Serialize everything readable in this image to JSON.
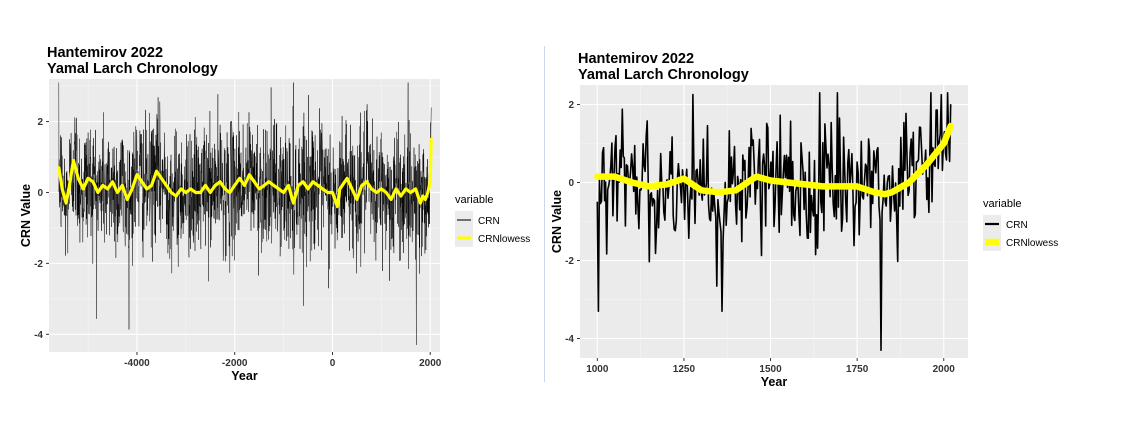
{
  "colors": {
    "panel_bg": "#ebebeb",
    "grid_major": "#ffffff",
    "grid_minor": "#f5f5f5",
    "crn": "#000000",
    "lowess": "#ffff00"
  },
  "chart_data": [
    {
      "type": "line",
      "title": [
        "Hantemirov 2022",
        "Yamal Larch Chronology"
      ],
      "xlabel": "Year",
      "ylabel": "CRN Value",
      "xlim": [
        -5800,
        2200
      ],
      "ylim": [
        -4.5,
        3.2
      ],
      "x_ticks": [
        -4000,
        -2000,
        0,
        2000
      ],
      "x_tick_labels": [
        "-4000",
        "-2000",
        "0",
        "2000"
      ],
      "y_ticks": [
        -4,
        -2,
        0,
        2
      ],
      "y_tick_labels": [
        "-4",
        "-2",
        "0",
        "2"
      ],
      "grid": true,
      "legend": {
        "title": "variable",
        "position": "right",
        "entries": [
          "CRN",
          "CRNlowess"
        ]
      },
      "x_range": [
        -5600,
        2020
      ],
      "series": [
        {
          "name": "CRN",
          "color": "#000000",
          "style": "dense noisy annual series",
          "typical_range": [
            -1.2,
            1.5
          ],
          "extreme_max": 3.1,
          "extreme_min": -4.3
        },
        {
          "name": "CRNlowess",
          "color": "#ffff00",
          "x": [
            -5600,
            -5530,
            -5450,
            -5380,
            -5300,
            -5200,
            -5100,
            -5000,
            -4900,
            -4800,
            -4700,
            -4600,
            -4500,
            -4400,
            -4300,
            -4200,
            -4100,
            -4000,
            -3900,
            -3800,
            -3700,
            -3600,
            -3500,
            -3400,
            -3300,
            -3200,
            -3100,
            -3000,
            -2900,
            -2800,
            -2700,
            -2600,
            -2500,
            -2400,
            -2300,
            -2200,
            -2100,
            -2000,
            -1900,
            -1800,
            -1700,
            -1600,
            -1500,
            -1400,
            -1300,
            -1200,
            -1100,
            -1000,
            -900,
            -800,
            -700,
            -600,
            -500,
            -400,
            -300,
            -200,
            -100,
            0,
            100,
            150,
            200,
            300,
            400,
            500,
            600,
            700,
            800,
            900,
            1000,
            1100,
            1200,
            1300,
            1400,
            1500,
            1600,
            1700,
            1800,
            1850,
            1900,
            1950,
            2000,
            2020
          ],
          "y": [
            0.7,
            0.1,
            -0.3,
            0.2,
            0.9,
            0.4,
            0.1,
            0.4,
            0.3,
            0.0,
            0.2,
            0.1,
            0.3,
            0.0,
            0.2,
            -0.2,
            0.1,
            0.5,
            0.3,
            0.1,
            0.2,
            0.6,
            0.4,
            0.2,
            0.0,
            -0.1,
            0.1,
            0.0,
            0.1,
            0.0,
            0.0,
            0.2,
            0.0,
            0.2,
            0.3,
            0.1,
            0.0,
            0.2,
            0.4,
            0.2,
            0.5,
            0.3,
            0.1,
            0.2,
            0.3,
            0.2,
            0.1,
            0.0,
            0.2,
            -0.3,
            0.2,
            0.3,
            0.1,
            0.3,
            0.2,
            0.1,
            0.0,
            0.0,
            -0.4,
            0.1,
            0.2,
            0.4,
            0.1,
            -0.2,
            0.2,
            0.3,
            0.1,
            0.0,
            0.1,
            0.0,
            -0.2,
            0.1,
            -0.1,
            0.1,
            0.0,
            0.1,
            -0.3,
            -0.1,
            -0.2,
            0.0,
            0.3,
            1.5
          ]
        }
      ]
    },
    {
      "type": "line",
      "title": [
        "Hantemirov 2022",
        "Yamal Larch Chronology"
      ],
      "xlabel": "Year",
      "ylabel": "CRN Value",
      "xlim": [
        950,
        2070
      ],
      "ylim": [
        -4.5,
        2.5
      ],
      "x_ticks": [
        1000,
        1250,
        1500,
        1750,
        2000
      ],
      "x_tick_labels": [
        "1000",
        "1250",
        "1500",
        "1750",
        "2000"
      ],
      "y_ticks": [
        -4,
        -2,
        0,
        2
      ],
      "y_tick_labels": [
        "-4",
        "-2",
        "0",
        "2"
      ],
      "grid": true,
      "legend": {
        "title": "variable",
        "position": "right",
        "entries": [
          "CRN",
          "CRNlowess"
        ]
      },
      "x_range": [
        1000,
        2020
      ],
      "series": [
        {
          "name": "CRN",
          "color": "#000000",
          "style": "noisy annual series",
          "typical_range": [
            -1.5,
            1.7
          ],
          "extreme_max": 2.3,
          "extreme_min": -4.3,
          "minima": [
            [
              1003,
              -3.3
            ],
            [
              1360,
              -3.3
            ],
            [
              1820,
              -4.3
            ]
          ]
        },
        {
          "name": "CRNlowess",
          "color": "#ffff00",
          "x": [
            1000,
            1050,
            1100,
            1150,
            1200,
            1250,
            1300,
            1350,
            1400,
            1450,
            1460,
            1500,
            1550,
            1600,
            1650,
            1700,
            1750,
            1800,
            1830,
            1850,
            1900,
            1950,
            2000,
            2020
          ],
          "y": [
            0.15,
            0.15,
            0.0,
            -0.1,
            -0.05,
            0.1,
            -0.2,
            -0.25,
            -0.2,
            0.1,
            0.15,
            0.05,
            0.0,
            -0.05,
            -0.1,
            -0.1,
            -0.1,
            -0.25,
            -0.3,
            -0.25,
            0.0,
            0.45,
            1.0,
            1.45
          ]
        }
      ]
    }
  ]
}
